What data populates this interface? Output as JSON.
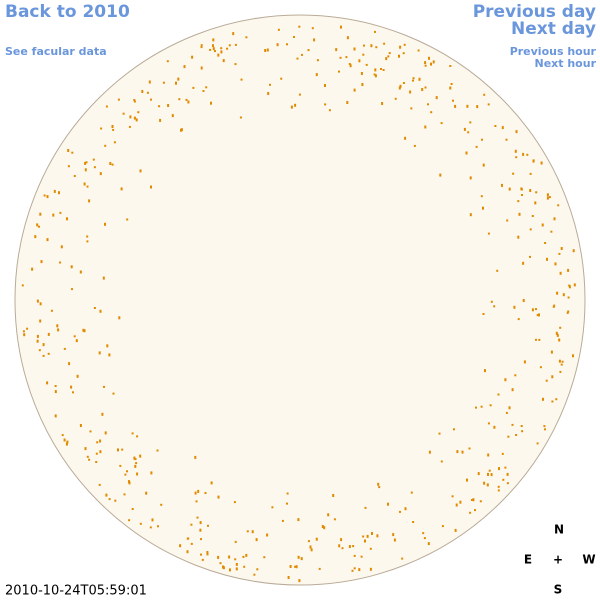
{
  "links": {
    "back": "Back to 2010",
    "facular": "See facular data",
    "previous_day": "Previous day",
    "next_day": "Next day",
    "previous_hour": "Previous hour",
    "next_hour": "Next hour"
  },
  "timestamp": "2010-10-24T05:59:01",
  "compass": {
    "north": "N",
    "east": "E",
    "center": "+",
    "west": "W",
    "south": "S"
  }
}
